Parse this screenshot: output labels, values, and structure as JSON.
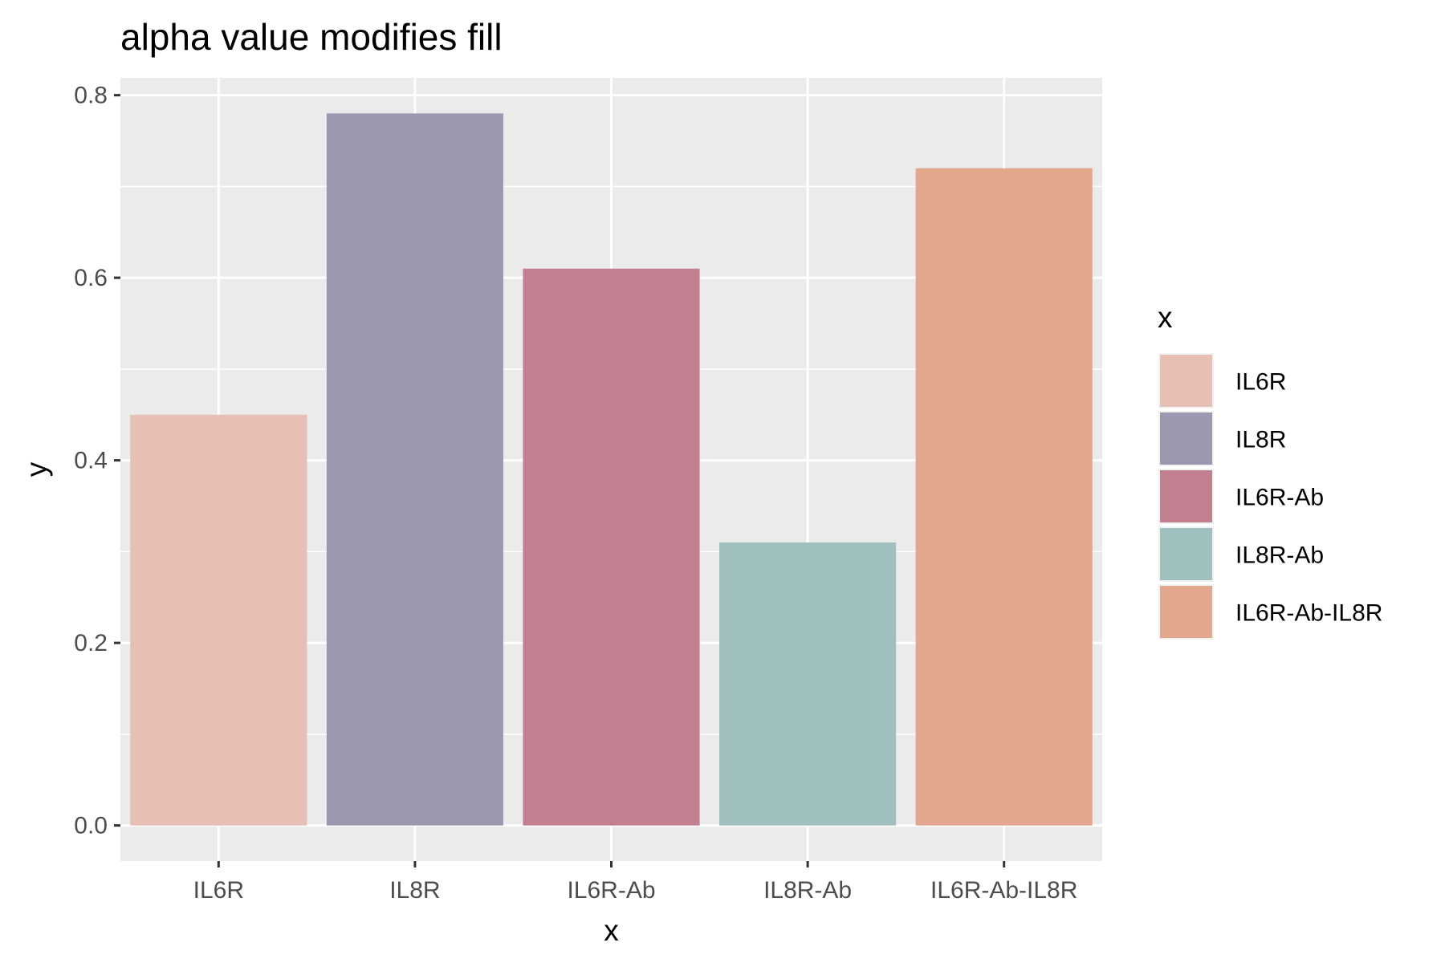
{
  "chart_data": {
    "type": "bar",
    "title": "alpha value modifies fill",
    "xlabel": "x",
    "ylabel": "y",
    "categories": [
      "IL6R",
      "IL8R",
      "IL6R-Ab",
      "IL8R-Ab",
      "IL6R-Ab-IL8R"
    ],
    "values": [
      0.45,
      0.78,
      0.61,
      0.31,
      0.72
    ],
    "colors": [
      "#e8bfb5",
      "#9d97b0",
      "#c27f8f",
      "#a0c0bf",
      "#e2a78d"
    ],
    "ylim": [
      -0.039,
      0.819
    ],
    "yticks": [
      0.0,
      0.2,
      0.4,
      0.6,
      0.8
    ],
    "ytick_labels": [
      "0.0",
      "0.2",
      "0.4",
      "0.6",
      "0.8"
    ],
    "grid": true,
    "panel_background": "#ebebeb",
    "gridline_color": "#ffffff",
    "legend": {
      "title": "x",
      "placement": "right",
      "labels": [
        "IL6R",
        "IL8R",
        "IL6R-Ab",
        "IL8R-Ab",
        "IL6R-Ab-IL8R"
      ]
    }
  }
}
